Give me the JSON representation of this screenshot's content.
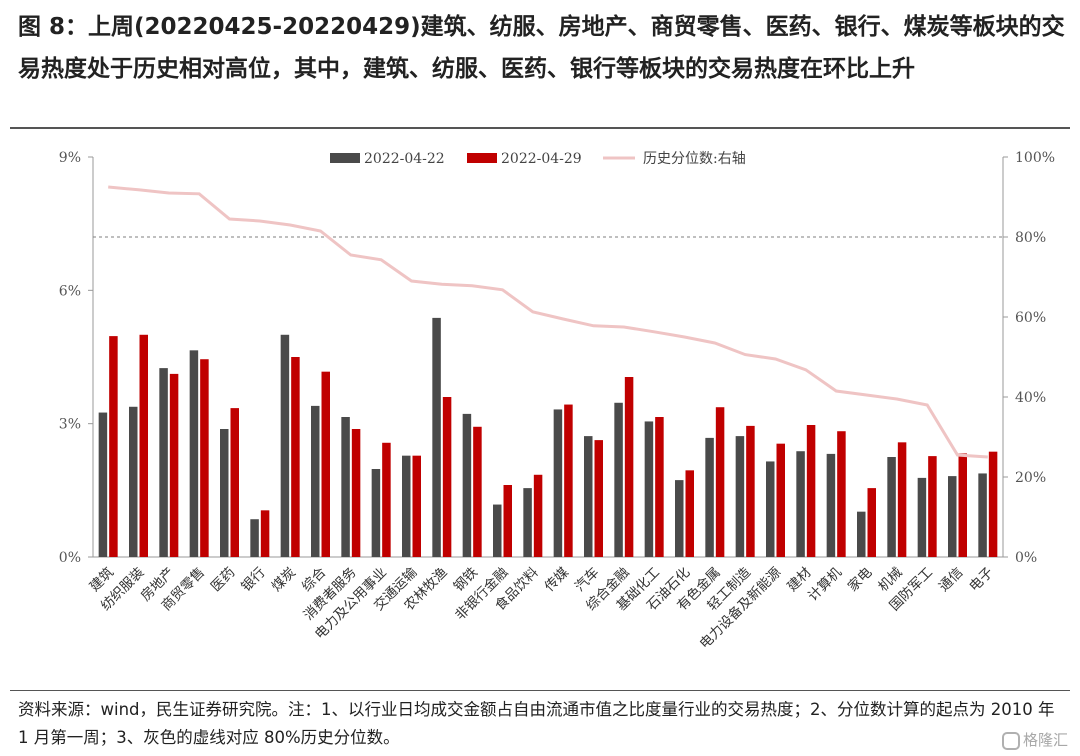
{
  "figure": {
    "title": "图 8：上周(20220425-20220429)建筑、纺服、房地产、商贸零售、医药、银行、煤炭等板块的交易热度处于历史相对高位，其中，建筑、纺服、医药、银行等板块的交易热度在环比上升",
    "source_note": "资料来源：wind，民生证券研究院。注：1、以行业日均成交金额占自由流通市值之比度量行业的交易热度；2、分位数计算的起点为 2010 年 1 月第一周；3、灰色的虚线对应 80%历史分位数。",
    "watermark": "格隆汇"
  },
  "colors": {
    "series_a": "#4a4a4a",
    "series_b": "#c00000",
    "line": "#efc4c4",
    "reference": "#7f7f7f"
  },
  "chart_data": {
    "type": "bar",
    "categories": [
      "建筑",
      "纺织服装",
      "房地产",
      "商贸零售",
      "医药",
      "银行",
      "煤炭",
      "综合",
      "消费者服务",
      "电力及公用事业",
      "交通运输",
      "农林牧渔",
      "钢铁",
      "非银行金融",
      "食品饮料",
      "传媒",
      "汽车",
      "综合金融",
      "基础化工",
      "石油石化",
      "有色金属",
      "轻工制造",
      "电力设备及新能源",
      "建材",
      "计算机",
      "家电",
      "机械",
      "国防军工",
      "通信",
      "电子"
    ],
    "series": [
      {
        "name": "2022-04-22",
        "axis": "left",
        "values": [
          3.25,
          3.38,
          4.25,
          4.65,
          2.88,
          0.85,
          5.0,
          3.4,
          3.15,
          1.98,
          2.28,
          5.38,
          3.22,
          1.18,
          1.55,
          3.32,
          2.72,
          3.47,
          3.05,
          1.73,
          2.68,
          2.72,
          2.15,
          2.38,
          2.32,
          1.02,
          2.25,
          1.78,
          1.82,
          1.88
        ]
      },
      {
        "name": "2022-04-29",
        "axis": "left",
        "values": [
          4.97,
          5.0,
          4.12,
          4.45,
          3.35,
          1.05,
          4.5,
          4.17,
          2.88,
          2.57,
          2.28,
          3.6,
          2.93,
          1.62,
          1.85,
          3.43,
          2.63,
          4.05,
          3.15,
          1.95,
          3.37,
          2.95,
          2.55,
          2.97,
          2.83,
          1.55,
          2.58,
          2.27,
          2.33,
          2.37
        ]
      },
      {
        "name": "历史分位数:右轴",
        "axis": "right",
        "type": "line",
        "values": [
          92.5,
          91.8,
          91.0,
          90.8,
          84.5,
          84.0,
          83.0,
          81.5,
          75.5,
          74.3,
          69.0,
          68.2,
          67.8,
          66.8,
          61.3,
          59.5,
          57.8,
          57.5,
          56.3,
          55.0,
          53.5,
          50.6,
          49.5,
          46.8,
          41.5,
          40.5,
          39.5,
          38.0,
          25.5,
          25.0
        ]
      }
    ],
    "y_left": {
      "min": 0,
      "max": 9,
      "ticks": [
        "0%",
        "3%",
        "6%",
        "9%"
      ],
      "tick_values": [
        0,
        3,
        6,
        9
      ]
    },
    "y_right": {
      "min": 0,
      "max": 100,
      "ticks": [
        "0%",
        "20%",
        "40%",
        "60%",
        "80%",
        "100%"
      ],
      "tick_values": [
        0,
        20,
        40,
        60,
        80,
        100
      ]
    },
    "reference_line": {
      "axis": "right",
      "value": 80,
      "style": "dashed"
    },
    "legend": {
      "position": "top",
      "items": [
        "2022-04-22",
        "2022-04-29",
        "历史分位数:右轴"
      ]
    },
    "grid": false
  }
}
